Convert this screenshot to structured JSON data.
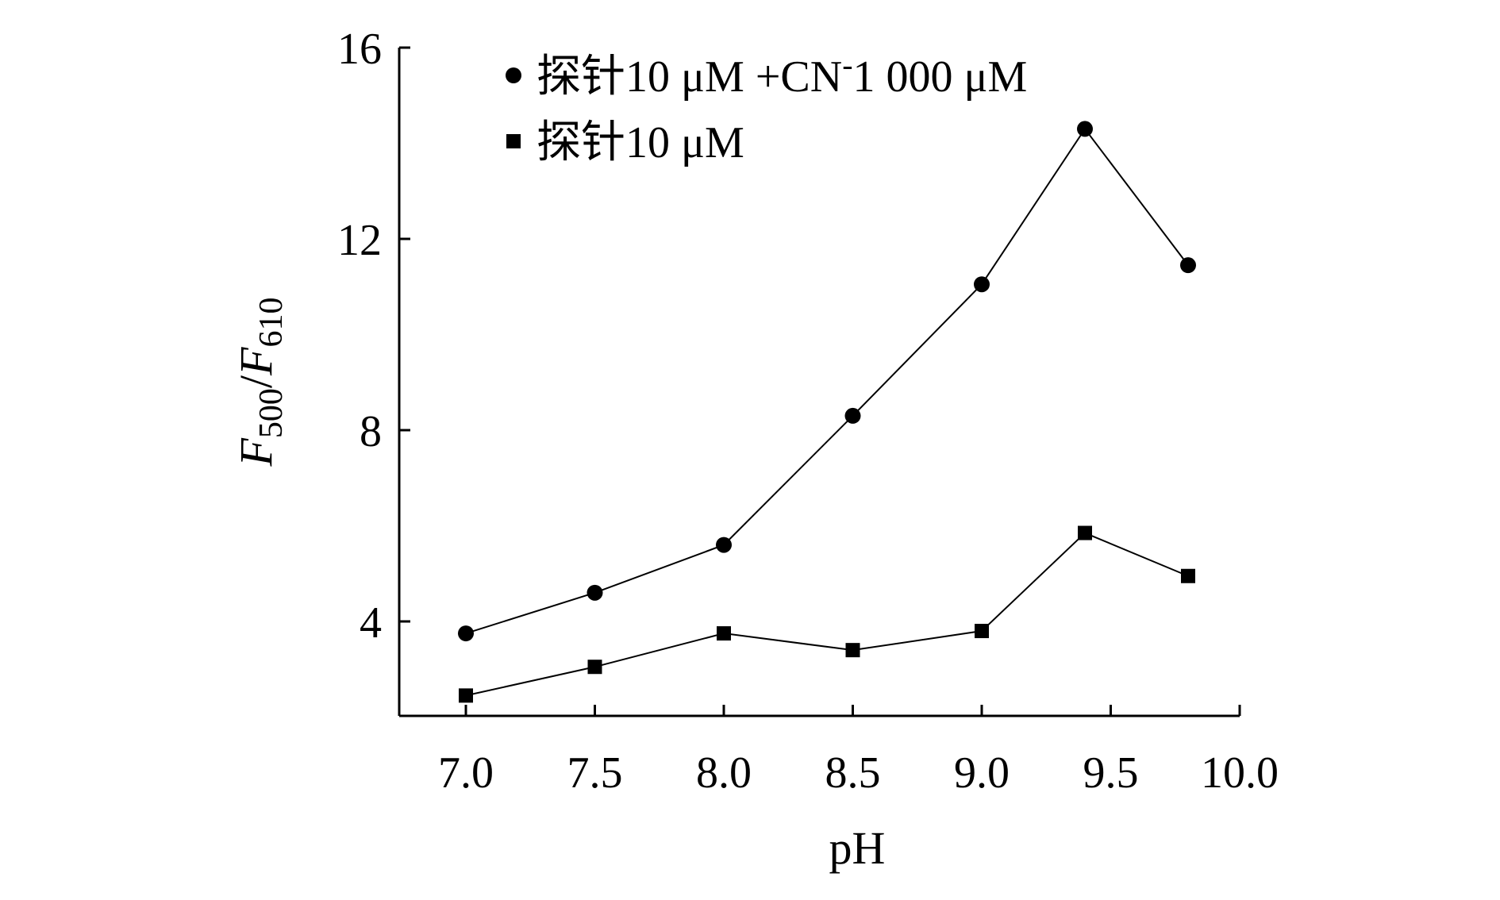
{
  "chart_data": {
    "type": "line",
    "xlabel": "pH",
    "ylabel": {
      "parts": [
        {
          "text": "F",
          "style": "italic"
        },
        {
          "text": "500",
          "style": "sub"
        },
        {
          "text": "/",
          "style": "normal"
        },
        {
          "text": "F",
          "style": "italic"
        },
        {
          "text": "610",
          "style": "sub"
        }
      ]
    },
    "xlim": [
      6.75,
      10.0
    ],
    "ylim": [
      2,
      16
    ],
    "xticks": [
      7.0,
      7.5,
      8.0,
      8.5,
      9.0,
      9.5,
      10.0
    ],
    "xtick_labels": [
      "7.0",
      "7.5",
      "8.0",
      "8.5",
      "9.0",
      "9.5",
      "10.0"
    ],
    "yticks": [
      4,
      8,
      12,
      16
    ],
    "ytick_labels": [
      "4",
      "8",
      "12",
      "16"
    ],
    "grid": false,
    "legend_position": "top-left",
    "series": [
      {
        "name": "探针10 μM +CN⁻1 000 μM",
        "name_parts": [
          {
            "text": "探针10 μM +CN",
            "style": "normal"
          },
          {
            "text": "-",
            "style": "sup"
          },
          {
            "text": "1 000 μM",
            "style": "normal"
          }
        ],
        "marker": "circle",
        "color": "#000000",
        "x": [
          7.0,
          7.5,
          8.0,
          8.5,
          9.0,
          9.4,
          9.8
        ],
        "y": [
          3.75,
          4.6,
          5.6,
          8.3,
          11.05,
          14.3,
          11.45
        ]
      },
      {
        "name": "探针10 μM",
        "name_parts": [
          {
            "text": "探针10 μM",
            "style": "normal"
          }
        ],
        "marker": "square",
        "color": "#000000",
        "x": [
          7.0,
          7.5,
          8.0,
          8.5,
          9.0,
          9.4,
          9.8
        ],
        "y": [
          2.45,
          3.05,
          3.75,
          3.4,
          3.8,
          5.85,
          4.95
        ]
      }
    ]
  }
}
